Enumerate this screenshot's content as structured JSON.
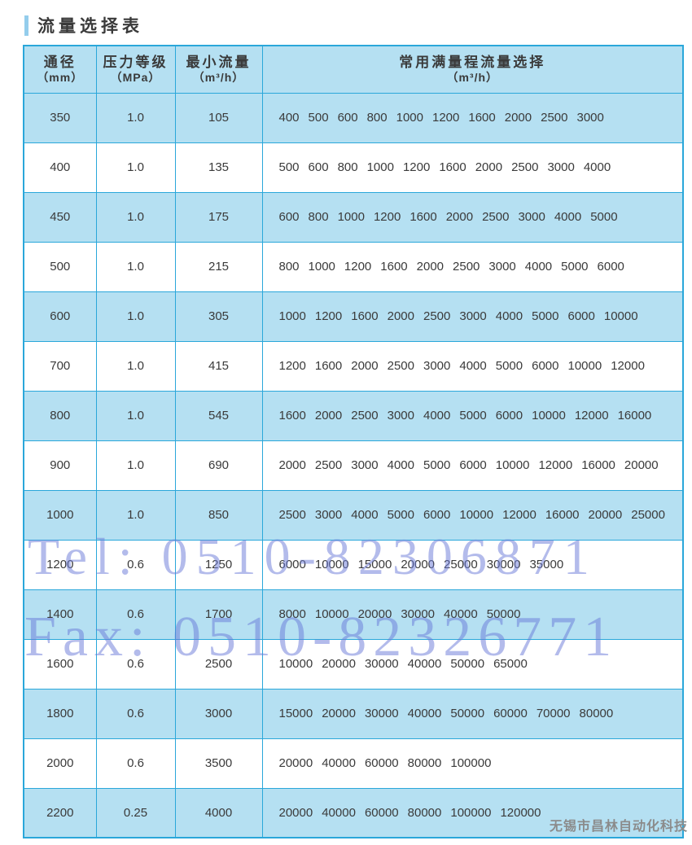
{
  "page": {
    "title": "流量选择表",
    "watermark_tel": "Tel: 0510-82306871",
    "watermark_fax": "Fax: 0510-82326771",
    "footer_brand": "无锡市昌林自动化科技"
  },
  "colors": {
    "row_blue": "#b5e0f2",
    "border_blue": "#2aa7da",
    "accent_bar_blue": "#94cdec",
    "watermark_periwinkle": "#6878d8",
    "footer_gray": "#8b8b8b",
    "text_dark": "#3a3a3a"
  },
  "table": {
    "headers": [
      {
        "label": "通径",
        "unit": "（mm）"
      },
      {
        "label": "压力等级",
        "unit": "（MPa）"
      },
      {
        "label": "最小流量",
        "unit": "（m³/h）"
      },
      {
        "label": "常用满量程流量选择",
        "unit": "（m³/h）"
      }
    ],
    "rows": [
      {
        "diameter": "350",
        "pressure": "1.0",
        "min_flow": "105",
        "full_scale_flows": [
          "400",
          "500",
          "600",
          "800",
          "1000",
          "1200",
          "1600",
          "2000",
          "2500",
          "3000"
        ]
      },
      {
        "diameter": "400",
        "pressure": "1.0",
        "min_flow": "135",
        "full_scale_flows": [
          "500",
          "600",
          "800",
          "1000",
          "1200",
          "1600",
          "2000",
          "2500",
          "3000",
          "4000"
        ]
      },
      {
        "diameter": "450",
        "pressure": "1.0",
        "min_flow": "175",
        "full_scale_flows": [
          "600",
          "800",
          "1000",
          "1200",
          "1600",
          "2000",
          "2500",
          "3000",
          "4000",
          "5000"
        ]
      },
      {
        "diameter": "500",
        "pressure": "1.0",
        "min_flow": "215",
        "full_scale_flows": [
          "800",
          "1000",
          "1200",
          "1600",
          "2000",
          "2500",
          "3000",
          "4000",
          "5000",
          "6000"
        ]
      },
      {
        "diameter": "600",
        "pressure": "1.0",
        "min_flow": "305",
        "full_scale_flows": [
          "1000",
          "1200",
          "1600",
          "2000",
          "2500",
          "3000",
          "4000",
          "5000",
          "6000",
          "10000"
        ]
      },
      {
        "diameter": "700",
        "pressure": "1.0",
        "min_flow": "415",
        "full_scale_flows": [
          "1200",
          "1600",
          "2000",
          "2500",
          "3000",
          "4000",
          "5000",
          "6000",
          "10000",
          "12000"
        ]
      },
      {
        "diameter": "800",
        "pressure": "1.0",
        "min_flow": "545",
        "full_scale_flows": [
          "1600",
          "2000",
          "2500",
          "3000",
          "4000",
          "5000",
          "6000",
          "10000",
          "12000",
          "16000"
        ]
      },
      {
        "diameter": "900",
        "pressure": "1.0",
        "min_flow": "690",
        "full_scale_flows": [
          "2000",
          "2500",
          "3000",
          "4000",
          "5000",
          "6000",
          "10000",
          "12000",
          "16000",
          "20000"
        ]
      },
      {
        "diameter": "1000",
        "pressure": "1.0",
        "min_flow": "850",
        "full_scale_flows": [
          "2500",
          "3000",
          "4000",
          "5000",
          "6000",
          "10000",
          "12000",
          "16000",
          "20000",
          "25000"
        ]
      },
      {
        "diameter": "1200",
        "pressure": "0.6",
        "min_flow": "1250",
        "full_scale_flows": [
          "6000",
          "10000",
          "15000",
          "20000",
          "25000",
          "30000",
          "35000"
        ]
      },
      {
        "diameter": "1400",
        "pressure": "0.6",
        "min_flow": "1700",
        "full_scale_flows": [
          "8000",
          "10000",
          "20000",
          "30000",
          "40000",
          "50000"
        ]
      },
      {
        "diameter": "1600",
        "pressure": "0.6",
        "min_flow": "2500",
        "full_scale_flows": [
          "10000",
          "20000",
          "30000",
          "40000",
          "50000",
          "65000"
        ]
      },
      {
        "diameter": "1800",
        "pressure": "0.6",
        "min_flow": "3000",
        "full_scale_flows": [
          "15000",
          "20000",
          "30000",
          "40000",
          "50000",
          "60000",
          "70000",
          "80000"
        ]
      },
      {
        "diameter": "2000",
        "pressure": "0.6",
        "min_flow": "3500",
        "full_scale_flows": [
          "20000",
          "40000",
          "60000",
          "80000",
          "100000"
        ]
      },
      {
        "diameter": "2200",
        "pressure": "0.25",
        "min_flow": "4000",
        "full_scale_flows": [
          "20000",
          "40000",
          "60000",
          "80000",
          "100000",
          "120000"
        ]
      }
    ]
  }
}
